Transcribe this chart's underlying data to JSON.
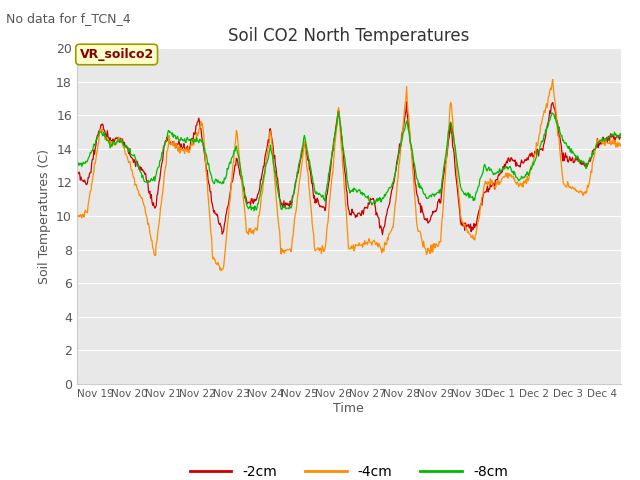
{
  "title": "Soil CO2 North Temperatures",
  "no_data_label": "No data for f_TCN_4",
  "station_label": "VR_soilco2",
  "ylabel": "Soil Temperatures (C)",
  "xlabel": "Time",
  "ylim": [
    0,
    20
  ],
  "bg_color": "#e8e8e8",
  "fig_bg": "#ffffff",
  "line_colors": {
    "m2cm": "#cc0000",
    "m4cm": "#ff8c00",
    "m8cm": "#00bb00"
  },
  "line_labels": [
    "-2cm",
    "-4cm",
    "-8cm"
  ],
  "x_tick_labels": [
    "Nov 19",
    "Nov 20",
    "Nov 21",
    "Nov 22",
    "Nov 23",
    "Nov 24",
    "Nov 25",
    "Nov 26",
    "Nov 27",
    "Nov 28",
    "Nov 29",
    "Nov 30",
    "Dec 1",
    "Dec 2",
    "Dec 3",
    "Dec 4"
  ],
  "n_days": 16,
  "points_per_day": 48,
  "kp_2cm_x": [
    0,
    0.3,
    0.7,
    1.0,
    1.3,
    1.7,
    2.0,
    2.3,
    2.6,
    3.0,
    3.3,
    3.6,
    4.0,
    4.3,
    4.7,
    5.0,
    5.3,
    5.7,
    6.0,
    6.3,
    6.7,
    7.0,
    7.3,
    7.7,
    8.0,
    8.3,
    8.7,
    9.0,
    9.3,
    9.7,
    10.0,
    10.3,
    10.7,
    11.0,
    11.3,
    11.7,
    12.0,
    12.3,
    12.7,
    13.0,
    13.3,
    13.7,
    14.0,
    14.3,
    14.7,
    15.0,
    15.3,
    15.7,
    16.0
  ],
  "kp_2cm_y": [
    12.5,
    11.8,
    15.5,
    14.5,
    14.7,
    13.2,
    12.5,
    10.2,
    14.5,
    14.2,
    14.0,
    15.8,
    10.5,
    9.0,
    13.5,
    10.8,
    11.0,
    15.2,
    10.6,
    10.7,
    14.5,
    11.0,
    10.4,
    16.5,
    10.3,
    10.0,
    11.0,
    9.0,
    11.8,
    16.5,
    11.2,
    9.5,
    11.0,
    15.5,
    9.5,
    9.3,
    11.5,
    12.0,
    13.5,
    13.0,
    13.5,
    14.0,
    17.0,
    13.5,
    13.3,
    13.0,
    14.3,
    14.7,
    14.7
  ],
  "kp_4cm_x": [
    0,
    0.3,
    0.7,
    1.0,
    1.3,
    1.7,
    2.0,
    2.3,
    2.7,
    3.0,
    3.3,
    3.7,
    4.0,
    4.3,
    4.7,
    5.0,
    5.3,
    5.7,
    6.0,
    6.3,
    6.7,
    7.0,
    7.3,
    7.7,
    8.0,
    8.3,
    8.7,
    9.0,
    9.3,
    9.7,
    10.0,
    10.3,
    10.7,
    11.0,
    11.3,
    11.7,
    12.0,
    12.3,
    12.7,
    13.0,
    13.3,
    13.7,
    14.0,
    14.3,
    14.7,
    15.0,
    15.3,
    15.7,
    16.0
  ],
  "kp_4cm_y": [
    10.0,
    10.2,
    15.2,
    14.2,
    14.5,
    12.2,
    10.5,
    7.6,
    14.5,
    14.0,
    13.8,
    15.5,
    7.5,
    6.6,
    15.2,
    9.0,
    9.2,
    15.1,
    7.9,
    8.0,
    14.5,
    8.0,
    7.9,
    16.5,
    8.0,
    8.2,
    8.5,
    8.0,
    9.3,
    17.5,
    9.5,
    7.8,
    8.5,
    17.0,
    9.8,
    8.5,
    12.0,
    11.8,
    12.5,
    11.8,
    12.2,
    15.8,
    18.0,
    12.0,
    11.5,
    11.3,
    14.5,
    14.3,
    14.3
  ],
  "kp_8cm_x": [
    0,
    0.3,
    0.7,
    1.0,
    1.3,
    1.7,
    2.0,
    2.3,
    2.7,
    3.0,
    3.3,
    3.7,
    4.0,
    4.3,
    4.7,
    5.0,
    5.3,
    5.7,
    6.0,
    6.3,
    6.7,
    7.0,
    7.3,
    7.7,
    8.0,
    8.3,
    8.7,
    9.0,
    9.3,
    9.7,
    10.0,
    10.3,
    10.7,
    11.0,
    11.3,
    11.7,
    12.0,
    12.3,
    12.7,
    13.0,
    13.3,
    13.7,
    14.0,
    14.3,
    14.7,
    15.0,
    15.3,
    15.7,
    16.0
  ],
  "kp_8cm_y": [
    13.0,
    13.2,
    15.1,
    14.2,
    14.5,
    13.5,
    12.0,
    12.2,
    15.1,
    14.5,
    14.5,
    14.5,
    12.0,
    12.0,
    14.2,
    10.5,
    10.5,
    14.2,
    10.5,
    10.5,
    14.8,
    11.5,
    11.0,
    16.2,
    11.5,
    11.5,
    10.8,
    11.0,
    12.0,
    15.8,
    12.2,
    11.0,
    11.5,
    15.8,
    11.5,
    11.0,
    13.0,
    12.5,
    13.0,
    12.2,
    12.5,
    14.5,
    16.2,
    14.5,
    13.5,
    13.0,
    14.3,
    14.8,
    14.8
  ]
}
